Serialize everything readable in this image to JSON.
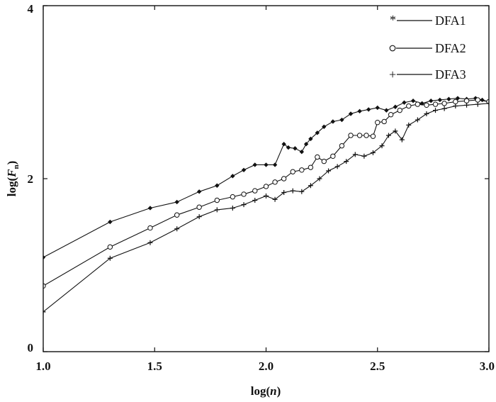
{
  "chart_data": {
    "type": "line",
    "title": "",
    "xlabel": {
      "prefix": "log(",
      "var": "n",
      "suffix": ")"
    },
    "ylabel": {
      "prefix": "log(",
      "var": "F",
      "sub": "n",
      "suffix": ")"
    },
    "xlim": [
      1.0,
      3.0
    ],
    "ylim": [
      0,
      4
    ],
    "xticks": [
      {
        "value": 1.0,
        "label": "1.0"
      },
      {
        "value": 1.5,
        "label": "1.5"
      },
      {
        "value": 2.0,
        "label": "2.0"
      },
      {
        "value": 2.5,
        "label": "2.5"
      },
      {
        "value": 3.0,
        "label": "3.0"
      }
    ],
    "yticks": [
      {
        "value": 0,
        "label": "0"
      },
      {
        "value": 2,
        "label": "2"
      },
      {
        "value": 4,
        "label": "4"
      }
    ],
    "grid": false,
    "legend_position": "top-right",
    "series": [
      {
        "name": "DFA1",
        "marker": "filled-diamond",
        "legend_marker": "*",
        "color": "#111111",
        "x": [
          1.0,
          1.3,
          1.48,
          1.6,
          1.7,
          1.78,
          1.85,
          1.9,
          1.95,
          2.0,
          2.04,
          2.08,
          2.1,
          2.13,
          2.16,
          2.18,
          2.2,
          2.23,
          2.26,
          2.3,
          2.34,
          2.38,
          2.42,
          2.46,
          2.5,
          2.54,
          2.58,
          2.62,
          2.66,
          2.7,
          2.74,
          2.78,
          2.82,
          2.86,
          2.9,
          2.94,
          2.97,
          3.0
        ],
        "y": [
          1.09,
          1.5,
          1.66,
          1.73,
          1.85,
          1.92,
          2.03,
          2.1,
          2.16,
          2.16,
          2.16,
          2.4,
          2.36,
          2.35,
          2.31,
          2.4,
          2.46,
          2.53,
          2.6,
          2.66,
          2.68,
          2.75,
          2.78,
          2.8,
          2.82,
          2.79,
          2.83,
          2.88,
          2.9,
          2.87,
          2.9,
          2.91,
          2.92,
          2.93,
          2.92,
          2.93,
          2.91,
          2.89
        ]
      },
      {
        "name": "DFA2",
        "marker": "open-circle",
        "legend_marker": "o",
        "color": "#111111",
        "x": [
          1.0,
          1.3,
          1.48,
          1.6,
          1.7,
          1.78,
          1.85,
          1.9,
          1.95,
          2.0,
          2.04,
          2.08,
          2.12,
          2.16,
          2.2,
          2.23,
          2.26,
          2.3,
          2.34,
          2.38,
          2.42,
          2.45,
          2.48,
          2.5,
          2.53,
          2.56,
          2.6,
          2.64,
          2.68,
          2.72,
          2.76,
          2.8,
          2.85,
          2.9,
          2.95,
          3.0
        ],
        "y": [
          0.76,
          1.21,
          1.43,
          1.58,
          1.67,
          1.75,
          1.79,
          1.82,
          1.86,
          1.91,
          1.96,
          2.0,
          2.08,
          2.1,
          2.13,
          2.25,
          2.2,
          2.26,
          2.38,
          2.5,
          2.5,
          2.5,
          2.49,
          2.65,
          2.66,
          2.74,
          2.79,
          2.84,
          2.86,
          2.85,
          2.86,
          2.87,
          2.89,
          2.9,
          2.91,
          2.89
        ]
      },
      {
        "name": "DFA3",
        "marker": "plus",
        "legend_marker": "+",
        "color": "#111111",
        "x": [
          1.0,
          1.3,
          1.48,
          1.6,
          1.7,
          1.78,
          1.85,
          1.9,
          1.95,
          2.0,
          2.04,
          2.08,
          2.12,
          2.16,
          2.2,
          2.24,
          2.28,
          2.32,
          2.36,
          2.4,
          2.44,
          2.48,
          2.52,
          2.55,
          2.58,
          2.61,
          2.64,
          2.68,
          2.72,
          2.76,
          2.8,
          2.85,
          2.9,
          2.95,
          3.0
        ],
        "y": [
          0.46,
          1.08,
          1.26,
          1.42,
          1.56,
          1.64,
          1.66,
          1.7,
          1.75,
          1.8,
          1.76,
          1.84,
          1.86,
          1.85,
          1.92,
          2.0,
          2.09,
          2.14,
          2.2,
          2.28,
          2.26,
          2.3,
          2.38,
          2.5,
          2.55,
          2.45,
          2.62,
          2.68,
          2.75,
          2.79,
          2.81,
          2.84,
          2.85,
          2.86,
          2.87
        ]
      }
    ]
  }
}
